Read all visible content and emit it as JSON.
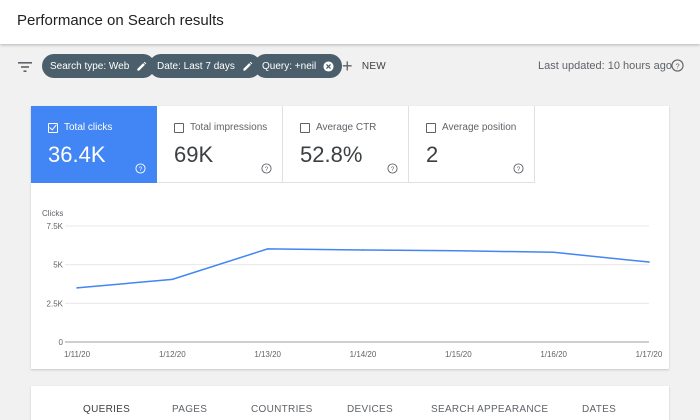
{
  "header": {
    "title": "Performance on Search results"
  },
  "filters": {
    "chips": [
      {
        "label": "Search type: Web",
        "icon": "edit-icon"
      },
      {
        "label": "Date: Last 7 days",
        "icon": "edit-icon"
      },
      {
        "label": "Query: +neil",
        "icon": "close-icon"
      }
    ],
    "new_label": "NEW",
    "last_updated": "Last updated: 10 hours ago"
  },
  "metrics": [
    {
      "label": "Total clicks",
      "value": "36.4K",
      "checked": true
    },
    {
      "label": "Total impressions",
      "value": "69K",
      "checked": false
    },
    {
      "label": "Average CTR",
      "value": "52.8%",
      "checked": false
    },
    {
      "label": "Average position",
      "value": "2",
      "checked": false
    }
  ],
  "chart_data": {
    "type": "line",
    "ylabel": "Clicks",
    "x": [
      "1/11/20",
      "1/12/20",
      "1/13/20",
      "1/14/20",
      "1/15/20",
      "1/16/20",
      "1/17/20"
    ],
    "y_ticks": [
      "0",
      "2.5K",
      "5K",
      "7.5K"
    ],
    "ylim": [
      0,
      7500
    ],
    "series": [
      {
        "values": [
          3500,
          4050,
          6020,
          5950,
          5900,
          5800,
          5170
        ]
      }
    ],
    "colors": {
      "line": "#4285f4",
      "grid": "#e8e8e8"
    }
  },
  "tabs": [
    "QUERIES",
    "PAGES",
    "COUNTRIES",
    "DEVICES",
    "SEARCH APPEARANCE",
    "DATES"
  ]
}
